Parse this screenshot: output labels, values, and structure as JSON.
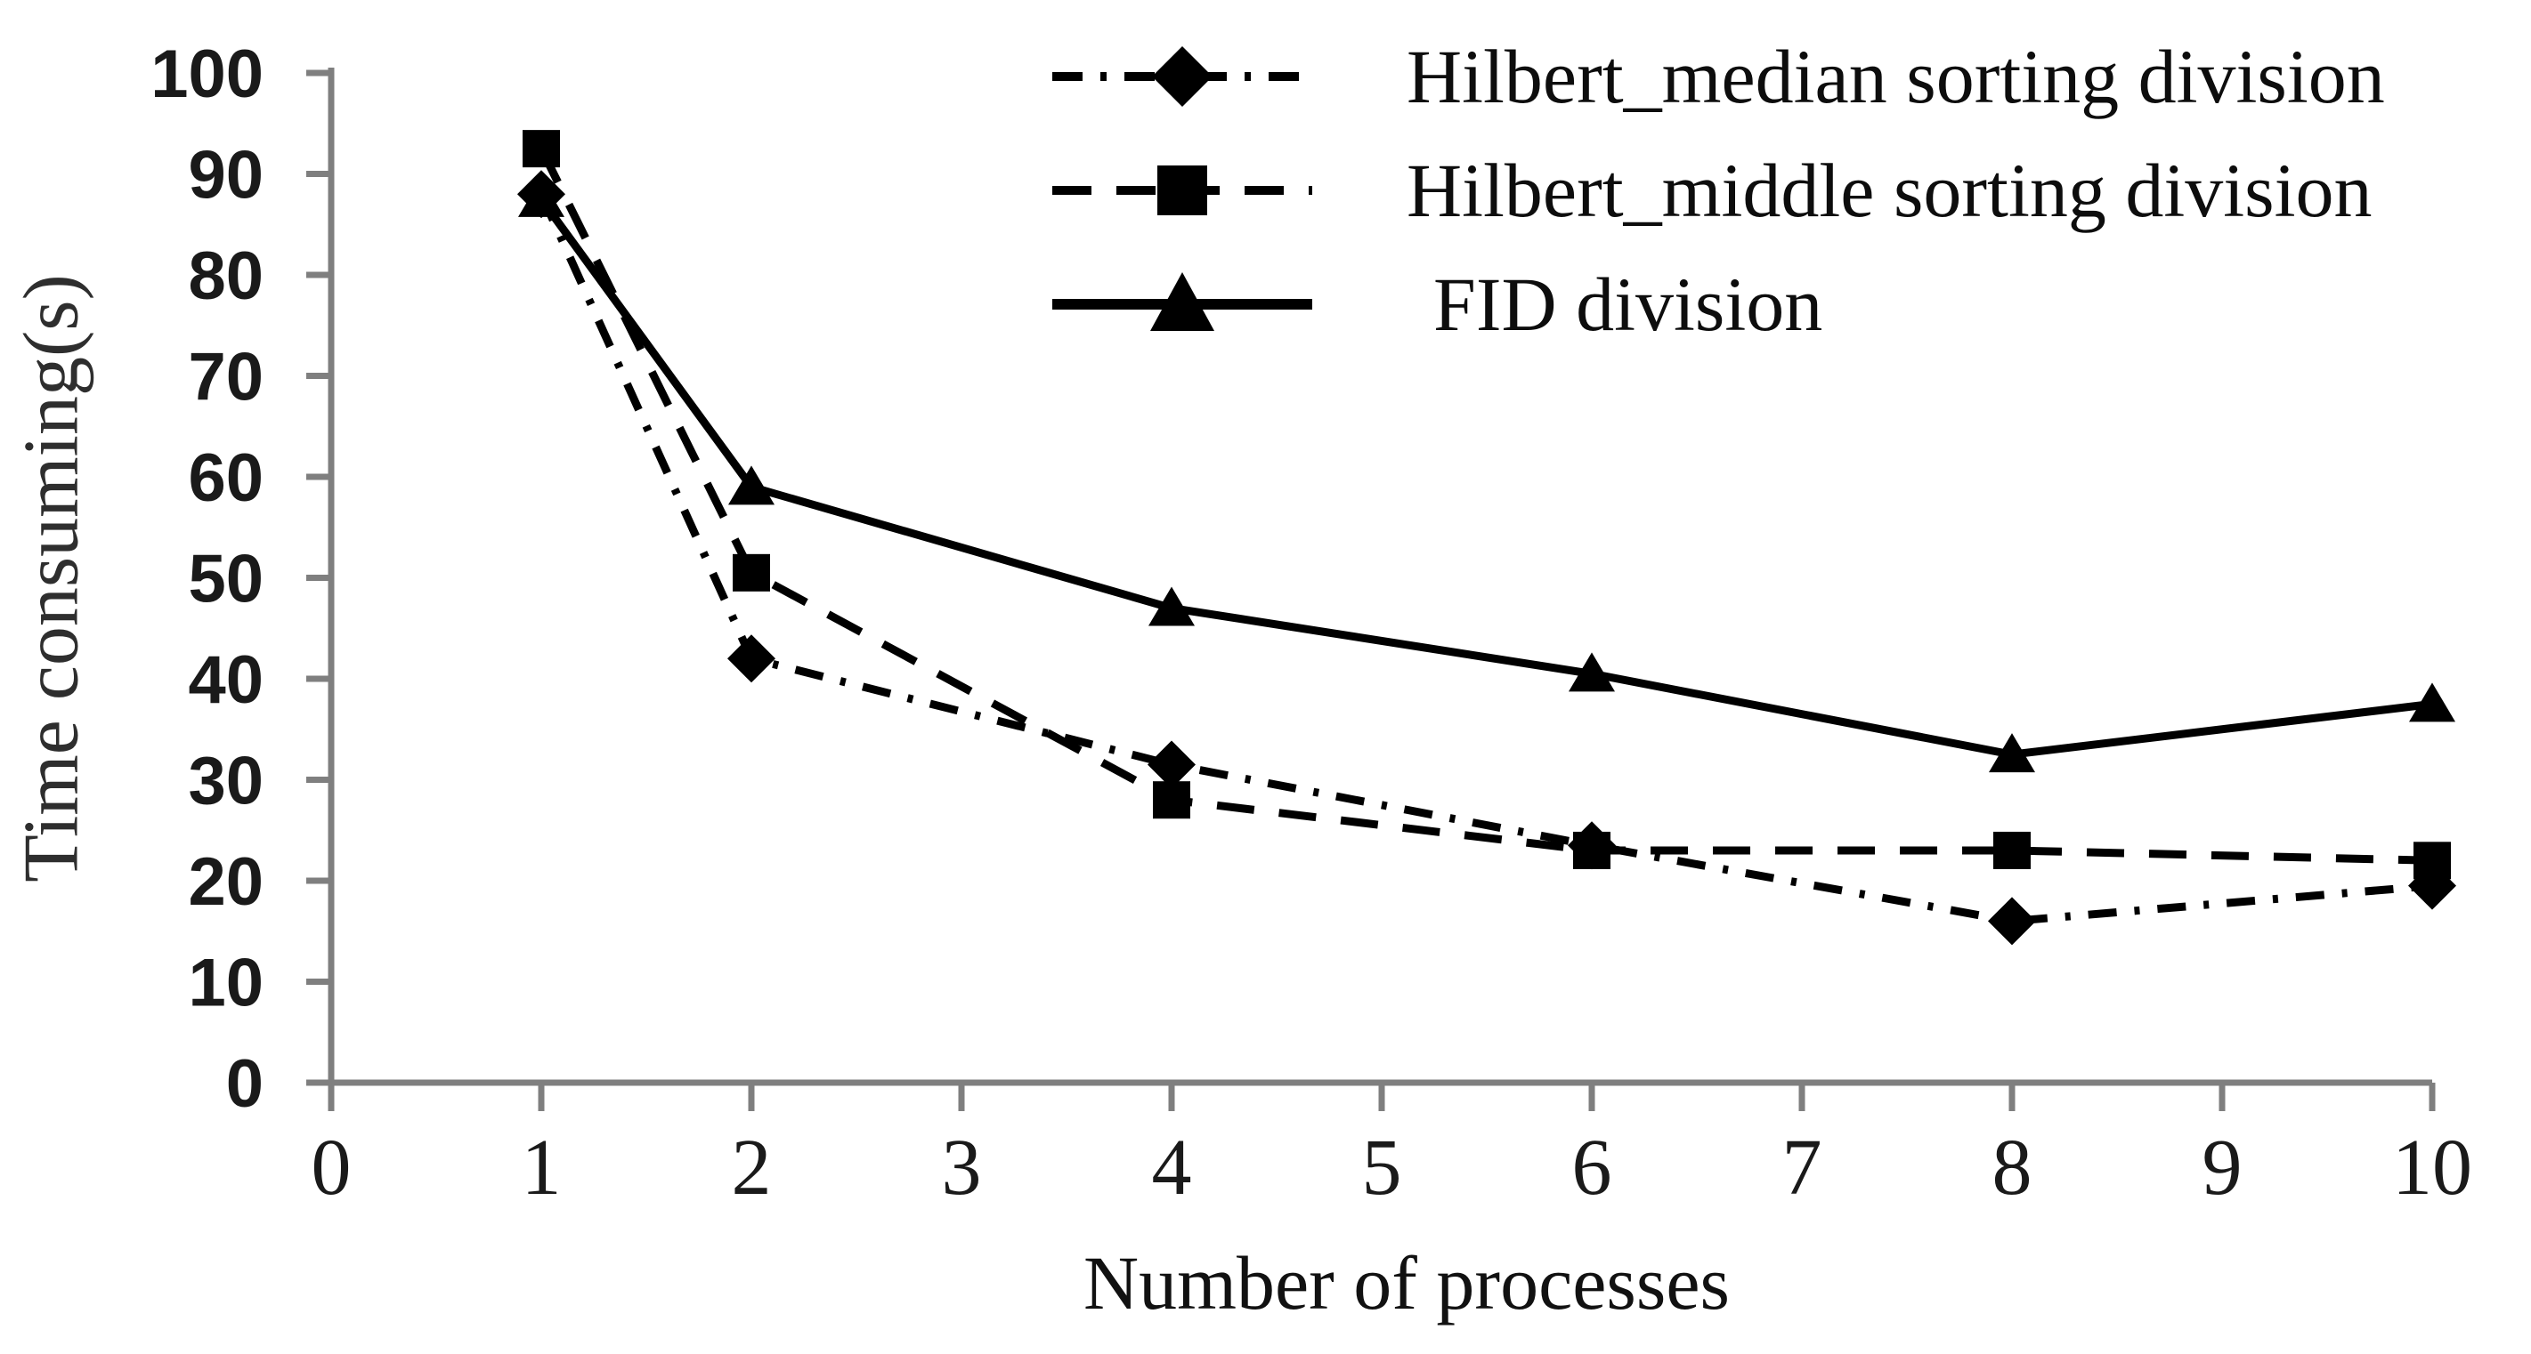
{
  "figure": {
    "background": "#ffffff"
  },
  "chart_data": {
    "type": "line",
    "title": "",
    "xlabel": "Number of processes",
    "ylabel": "Time consuming(s)",
    "x": [
      1,
      2,
      4,
      6,
      8,
      10
    ],
    "series": [
      {
        "name": "Hilbert_median sorting division",
        "marker": "diamond",
        "line_style": "dash-dot",
        "values": [
          88,
          42,
          31.5,
          23.5,
          16,
          19.5
        ]
      },
      {
        "name": "Hilbert_middle sorting division",
        "marker": "square",
        "line_style": "dashed",
        "values": [
          92.5,
          50.5,
          28,
          23,
          23,
          22
        ]
      },
      {
        "name": "FID division",
        "marker": "triangle",
        "line_style": "solid",
        "values": [
          87.5,
          59,
          47,
          40.5,
          32.5,
          37.5
        ]
      }
    ],
    "xlim": [
      0,
      10
    ],
    "ylim": [
      0,
      100
    ],
    "x_ticks": [
      0,
      1,
      2,
      3,
      4,
      5,
      6,
      7,
      8,
      9,
      10
    ],
    "y_ticks": [
      0,
      10,
      20,
      30,
      40,
      50,
      60,
      70,
      80,
      90,
      100
    ],
    "grid": false,
    "legend_position": "top-right-inside",
    "colors": {
      "series": "#000000",
      "axis": "#7f7f7f",
      "tick_label": "#1a1a1a",
      "background": "#ffffff"
    }
  }
}
